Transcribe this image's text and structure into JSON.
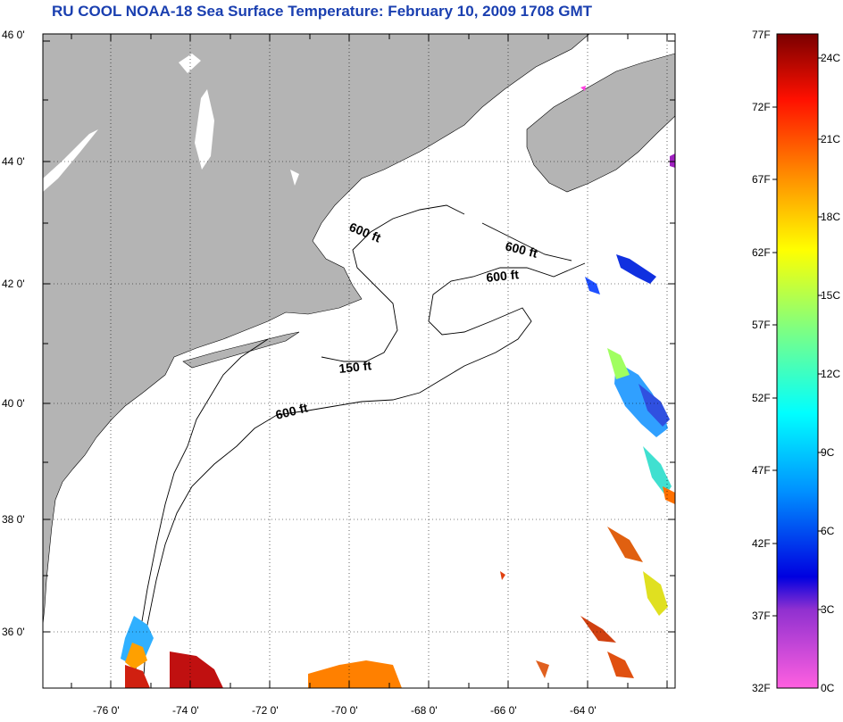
{
  "title": "RU COOL  NOAA-18  Sea Surface Temperature:  February 10, 2009 1708 GMT",
  "map": {
    "lat_labels": [
      "46 0'",
      "44 0'",
      "42 0'",
      "40 0'",
      "38 0'",
      "36 0'"
    ],
    "lon_labels": [
      "-76 0'",
      "-74 0'",
      "-72 0'",
      "-70 0'",
      "-68 0'",
      "-66 0'",
      "-64 0'"
    ],
    "contour_labels": [
      "600 ft",
      "600 ft",
      "600 ft",
      "150 ft",
      "600 ft"
    ],
    "land_color": "#b4b4b4",
    "ocean_color": "#ffffff"
  },
  "colorbar": {
    "fahrenheit_labels": [
      "77F",
      "72F",
      "67F",
      "62F",
      "57F",
      "52F",
      "47F",
      "42F",
      "37F",
      "32F"
    ],
    "celsius_labels": [
      "24C",
      "21C",
      "18C",
      "15C",
      "12C",
      "9C",
      "6C",
      "3C",
      "0C"
    ]
  }
}
